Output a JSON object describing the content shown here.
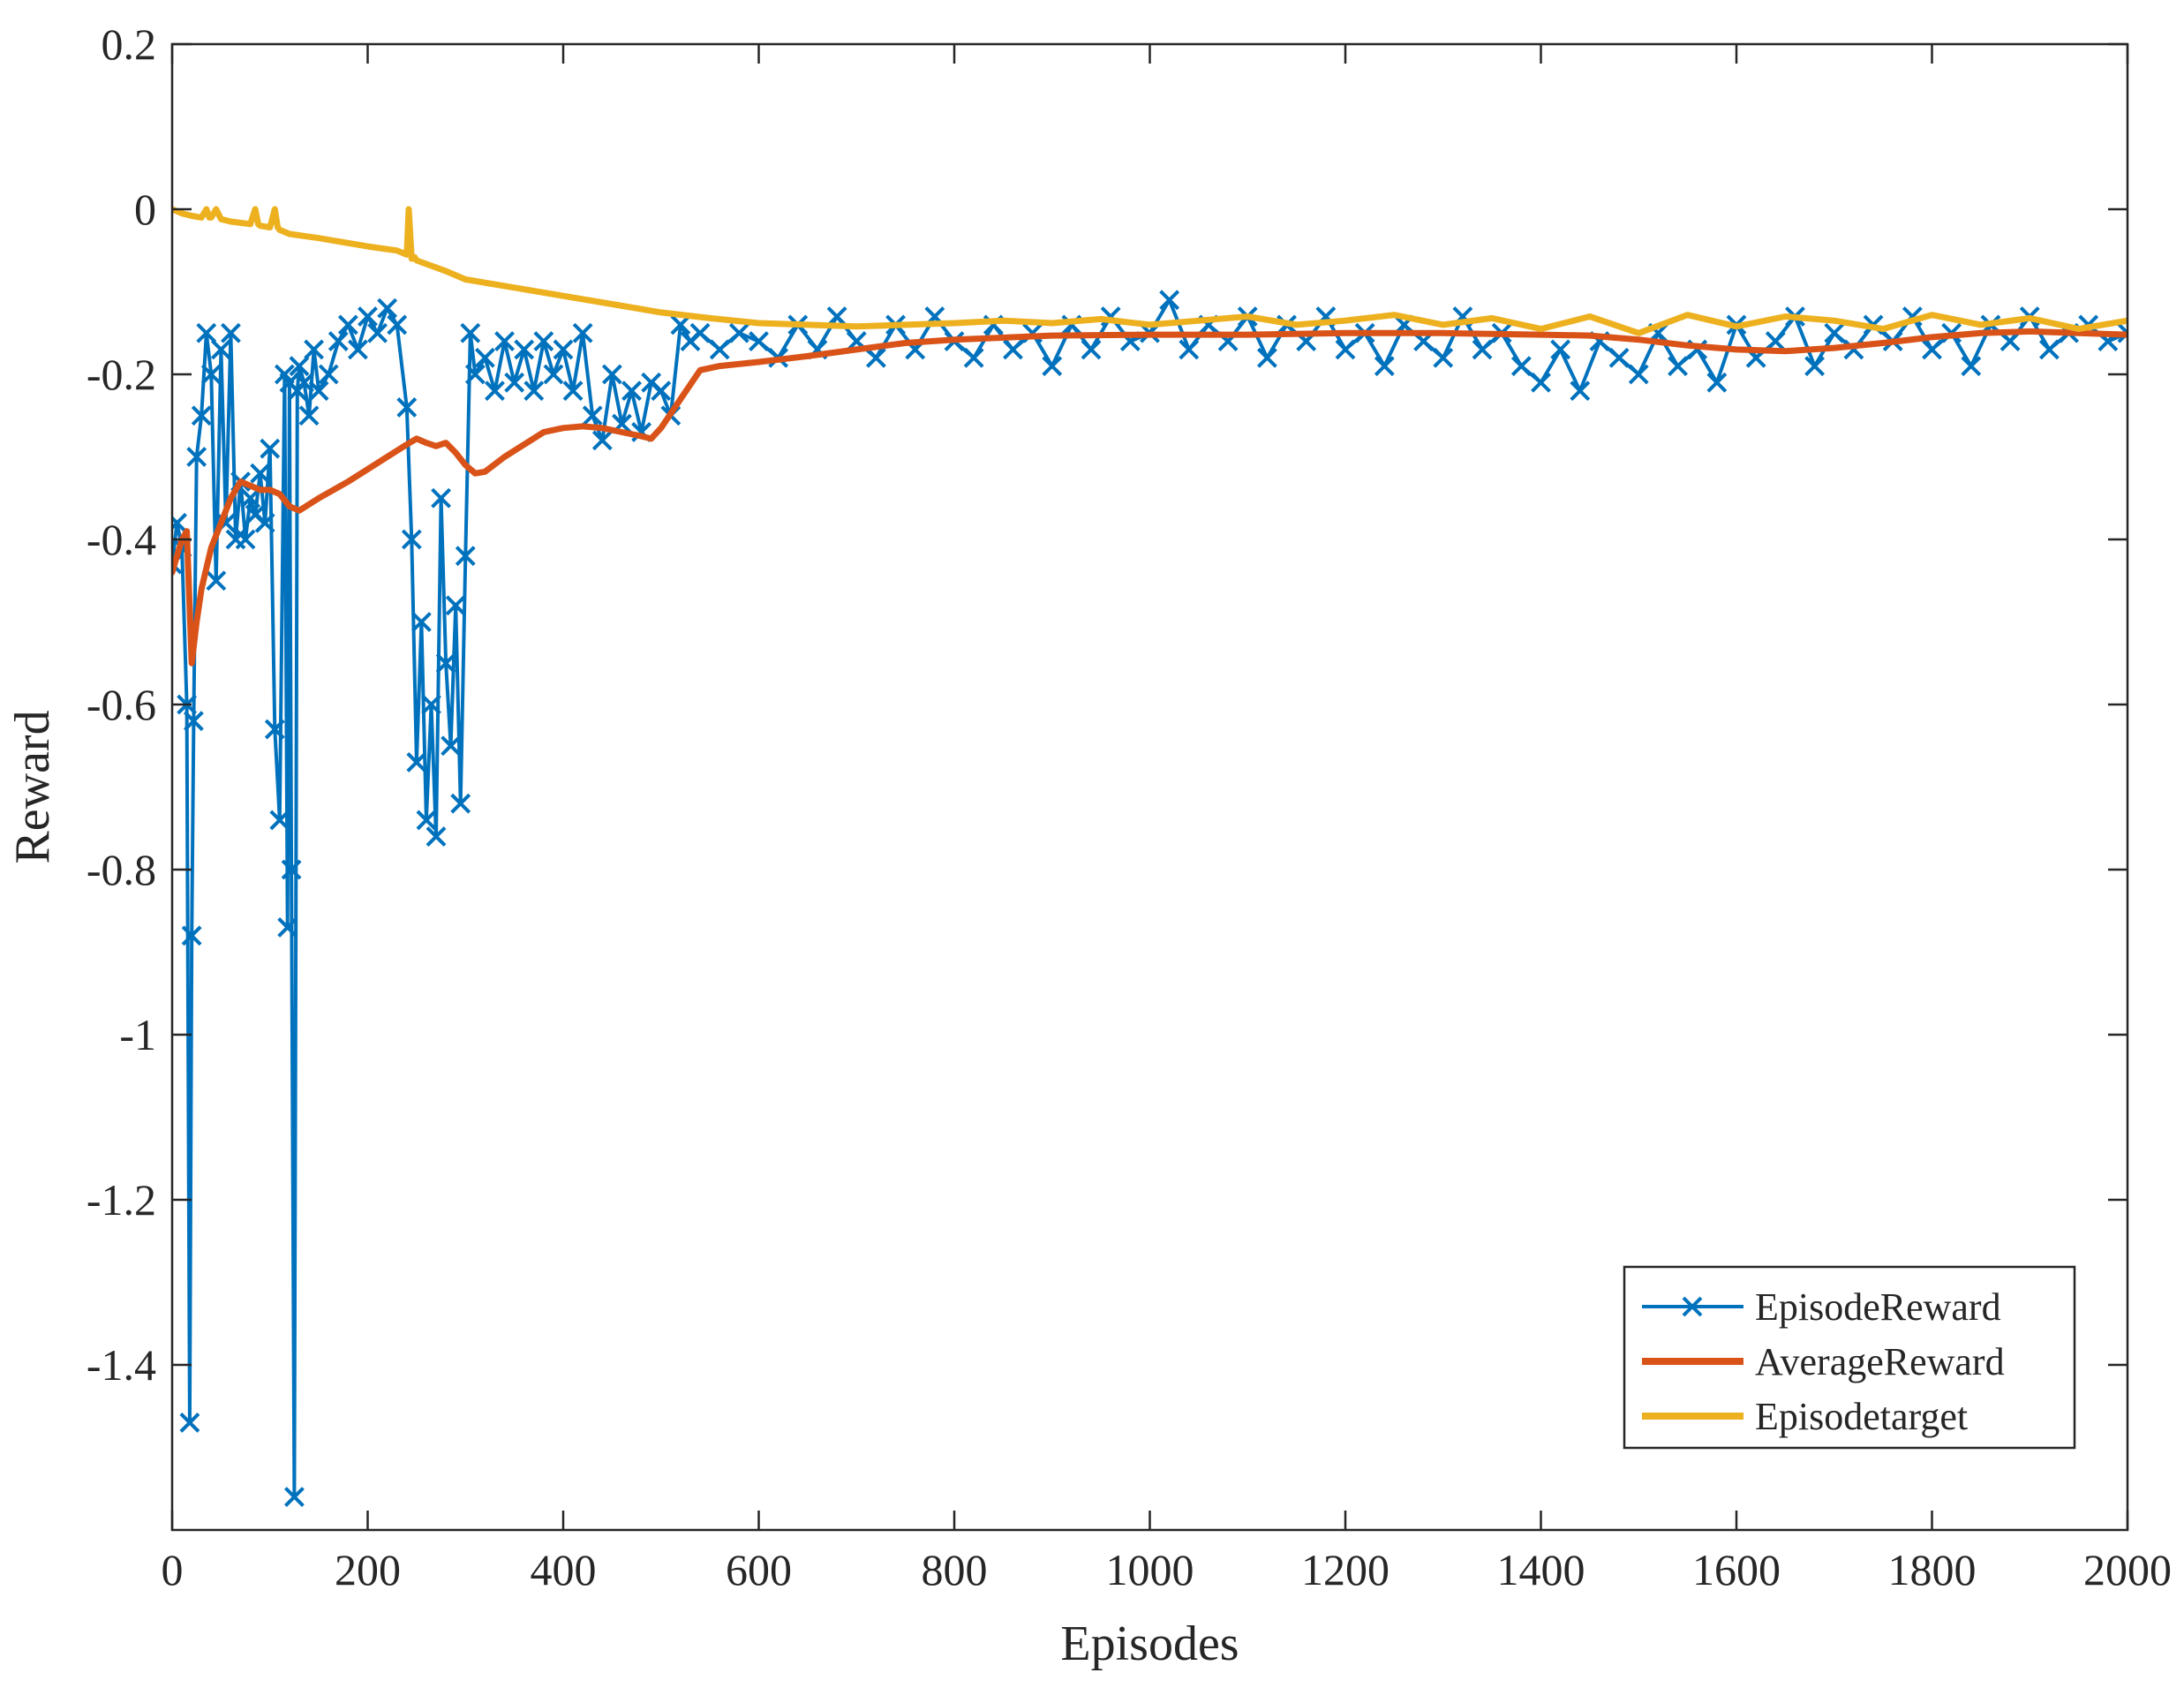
{
  "chart_data": {
    "type": "line",
    "title": "",
    "xlabel": "Episodes",
    "ylabel": "Reward",
    "xlim": [
      0,
      2000
    ],
    "ylim": [
      -1.6,
      0.2
    ],
    "xticks": [
      0,
      200,
      400,
      600,
      800,
      1000,
      1200,
      1400,
      1600,
      1800,
      2000
    ],
    "yticks": [
      0.2,
      0,
      -0.2,
      -0.4,
      -0.6,
      -0.8,
      -1,
      -1.2,
      -1.4
    ],
    "xtick_labels": [
      "0",
      "200",
      "400",
      "600",
      "800",
      "1000",
      "1200",
      "1400",
      "1600",
      "1800",
      "2000"
    ],
    "ytick_labels": [
      "0.2",
      "0",
      "-0.2",
      "-0.4",
      "-0.6",
      "-0.8",
      "-1",
      "-1.2",
      "-1.4"
    ],
    "grid": false,
    "legend_position": "bottom-right",
    "series": [
      {
        "name": "EpisodeReward",
        "color": "#0072BD",
        "marker": "x",
        "x": [
          0,
          5,
          10,
          15,
          18,
          20,
          22,
          25,
          30,
          35,
          40,
          45,
          50,
          55,
          60,
          65,
          70,
          75,
          80,
          85,
          90,
          95,
          100,
          105,
          110,
          115,
          118,
          120,
          122,
          125,
          128,
          130,
          135,
          140,
          145,
          150,
          160,
          170,
          180,
          190,
          200,
          210,
          220,
          230,
          240,
          245,
          250,
          255,
          260,
          265,
          270,
          275,
          280,
          285,
          290,
          295,
          300,
          305,
          310,
          320,
          330,
          340,
          350,
          360,
          370,
          380,
          390,
          400,
          410,
          420,
          430,
          440,
          450,
          460,
          470,
          480,
          490,
          500,
          510,
          520,
          530,
          540,
          560,
          580,
          600,
          620,
          640,
          660,
          680,
          700,
          720,
          740,
          760,
          780,
          800,
          820,
          840,
          860,
          880,
          900,
          920,
          940,
          960,
          980,
          1000,
          1020,
          1040,
          1060,
          1080,
          1100,
          1120,
          1140,
          1160,
          1180,
          1200,
          1220,
          1240,
          1260,
          1280,
          1300,
          1320,
          1340,
          1360,
          1380,
          1400,
          1420,
          1440,
          1460,
          1480,
          1500,
          1520,
          1540,
          1560,
          1580,
          1600,
          1620,
          1640,
          1660,
          1680,
          1700,
          1720,
          1740,
          1760,
          1780,
          1800,
          1820,
          1840,
          1860,
          1880,
          1900,
          1920,
          1940,
          1960,
          1980,
          2000
        ],
        "values": [
          -0.43,
          -0.38,
          -0.41,
          -0.6,
          -1.47,
          -0.88,
          -0.62,
          -0.3,
          -0.25,
          -0.15,
          -0.2,
          -0.45,
          -0.17,
          -0.38,
          -0.15,
          -0.4,
          -0.33,
          -0.4,
          -0.35,
          -0.37,
          -0.32,
          -0.38,
          -0.29,
          -0.63,
          -0.74,
          -0.2,
          -0.87,
          -0.21,
          -0.8,
          -1.56,
          -0.22,
          -0.19,
          -0.21,
          -0.25,
          -0.17,
          -0.22,
          -0.2,
          -0.16,
          -0.14,
          -0.17,
          -0.13,
          -0.15,
          -0.12,
          -0.14,
          -0.24,
          -0.4,
          -0.67,
          -0.5,
          -0.74,
          -0.6,
          -0.76,
          -0.35,
          -0.55,
          -0.65,
          -0.48,
          -0.72,
          -0.42,
          -0.15,
          -0.2,
          -0.18,
          -0.22,
          -0.16,
          -0.21,
          -0.17,
          -0.22,
          -0.16,
          -0.2,
          -0.17,
          -0.22,
          -0.15,
          -0.25,
          -0.28,
          -0.2,
          -0.26,
          -0.22,
          -0.27,
          -0.21,
          -0.22,
          -0.25,
          -0.14,
          -0.16,
          -0.15,
          -0.17,
          -0.15,
          -0.16,
          -0.18,
          -0.14,
          -0.17,
          -0.13,
          -0.16,
          -0.18,
          -0.14,
          -0.17,
          -0.13,
          -0.16,
          -0.18,
          -0.14,
          -0.17,
          -0.15,
          -0.19,
          -0.14,
          -0.17,
          -0.13,
          -0.16,
          -0.15,
          -0.11,
          -0.17,
          -0.14,
          -0.16,
          -0.13,
          -0.18,
          -0.14,
          -0.16,
          -0.13,
          -0.17,
          -0.15,
          -0.19,
          -0.14,
          -0.16,
          -0.18,
          -0.13,
          -0.17,
          -0.15,
          -0.19,
          -0.21,
          -0.17,
          -0.22,
          -0.16,
          -0.18,
          -0.2,
          -0.15,
          -0.19,
          -0.17,
          -0.21,
          -0.14,
          -0.18,
          -0.16,
          -0.13,
          -0.19,
          -0.15,
          -0.17,
          -0.14,
          -0.16,
          -0.13,
          -0.17,
          -0.15,
          -0.19,
          -0.14,
          -0.16,
          -0.13,
          -0.17,
          -0.15,
          -0.14,
          -0.16,
          -0.15
        ]
      },
      {
        "name": "AverageReward",
        "color": "#D95319",
        "marker": "none",
        "x": [
          0,
          5,
          10,
          15,
          20,
          25,
          30,
          40,
          50,
          60,
          70,
          80,
          90,
          100,
          110,
          120,
          130,
          150,
          180,
          200,
          220,
          240,
          250,
          260,
          270,
          280,
          290,
          300,
          310,
          320,
          340,
          360,
          380,
          400,
          420,
          440,
          460,
          480,
          490,
          500,
          520,
          540,
          560,
          600,
          650,
          700,
          750,
          800,
          900,
          1000,
          1100,
          1200,
          1300,
          1400,
          1450,
          1500,
          1550,
          1600,
          1650,
          1700,
          1750,
          1800,
          1850,
          1900,
          1950,
          2000
        ],
        "values": [
          -0.44,
          -0.42,
          -0.4,
          -0.39,
          -0.55,
          -0.5,
          -0.46,
          -0.41,
          -0.38,
          -0.35,
          -0.33,
          -0.335,
          -0.34,
          -0.34,
          -0.345,
          -0.36,
          -0.365,
          -0.35,
          -0.33,
          -0.315,
          -0.3,
          -0.285,
          -0.278,
          -0.283,
          -0.287,
          -0.283,
          -0.295,
          -0.31,
          -0.32,
          -0.318,
          -0.3,
          -0.285,
          -0.27,
          -0.265,
          -0.263,
          -0.265,
          -0.27,
          -0.275,
          -0.278,
          -0.265,
          -0.23,
          -0.195,
          -0.19,
          -0.185,
          -0.178,
          -0.17,
          -0.162,
          -0.158,
          -0.153,
          -0.152,
          -0.152,
          -0.15,
          -0.15,
          -0.152,
          -0.153,
          -0.158,
          -0.165,
          -0.17,
          -0.172,
          -0.168,
          -0.162,
          -0.155,
          -0.15,
          -0.148,
          -0.15,
          -0.152
        ]
      },
      {
        "name": "Episodetarget",
        "color": "#EDB120",
        "marker": "none",
        "x": [
          0,
          10,
          20,
          30,
          35,
          38,
          40,
          45,
          50,
          60,
          80,
          85,
          88,
          90,
          100,
          105,
          108,
          110,
          120,
          150,
          200,
          230,
          240,
          242,
          245,
          248,
          250,
          280,
          300,
          350,
          400,
          450,
          500,
          550,
          600,
          650,
          700,
          750,
          800,
          850,
          900,
          950,
          1000,
          1050,
          1100,
          1150,
          1200,
          1250,
          1300,
          1350,
          1400,
          1450,
          1500,
          1550,
          1600,
          1650,
          1700,
          1750,
          1800,
          1850,
          1900,
          1950,
          2000
        ],
        "values": [
          0,
          -0.005,
          -0.008,
          -0.01,
          0,
          -0.01,
          -0.01,
          0,
          -0.012,
          -0.015,
          -0.018,
          0,
          -0.018,
          -0.02,
          -0.022,
          0,
          -0.022,
          -0.025,
          -0.03,
          -0.035,
          -0.045,
          -0.05,
          -0.055,
          0,
          -0.06,
          -0.058,
          -0.062,
          -0.075,
          -0.085,
          -0.095,
          -0.105,
          -0.115,
          -0.125,
          -0.132,
          -0.138,
          -0.14,
          -0.142,
          -0.14,
          -0.138,
          -0.135,
          -0.138,
          -0.133,
          -0.14,
          -0.135,
          -0.13,
          -0.14,
          -0.135,
          -0.128,
          -0.14,
          -0.132,
          -0.145,
          -0.13,
          -0.15,
          -0.128,
          -0.142,
          -0.13,
          -0.135,
          -0.145,
          -0.128,
          -0.14,
          -0.132,
          -0.145,
          -0.135
        ]
      }
    ]
  }
}
